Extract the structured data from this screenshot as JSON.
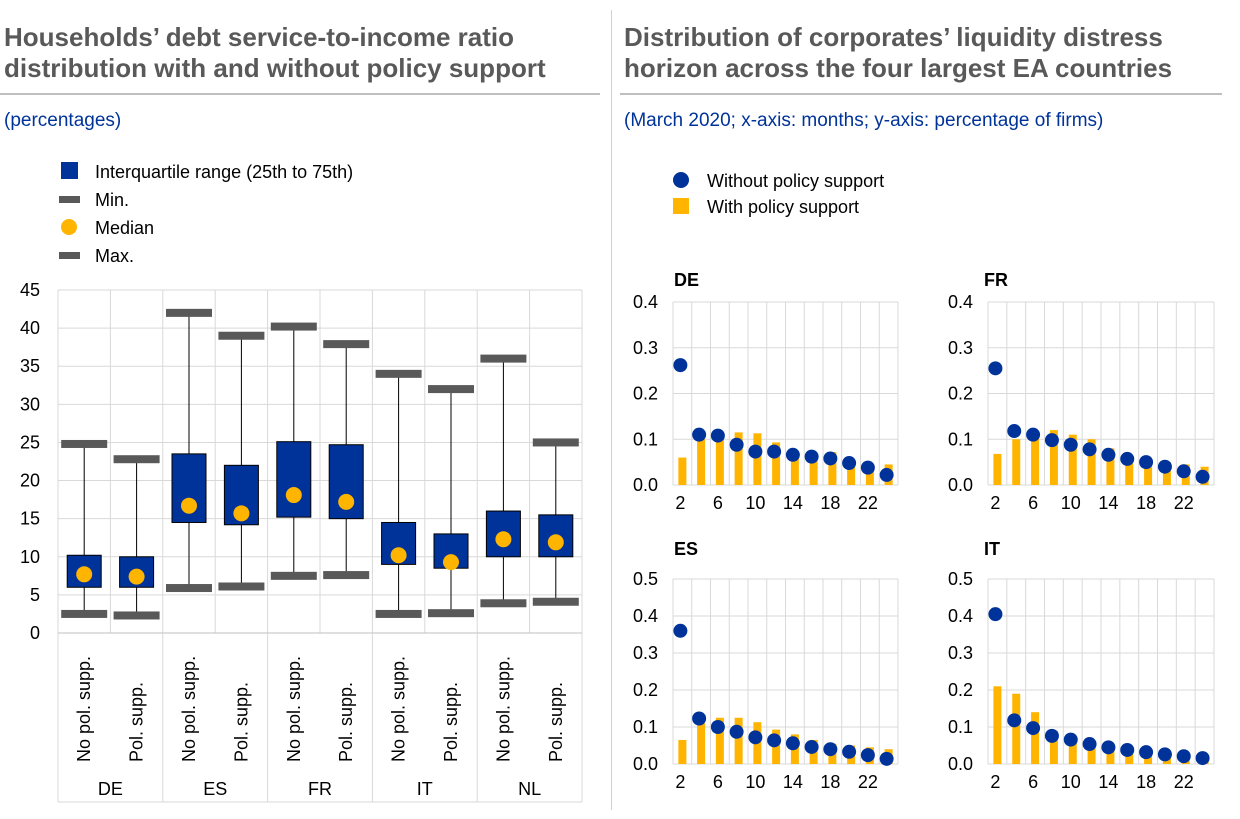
{
  "left_panel": {
    "title_line1": "Households’ debt service-to-income ratio",
    "title_line2": "distribution with and without policy support",
    "subtitle": "(percentages)"
  },
  "right_panel": {
    "title_line1": "Distribution of corporates’ liquidity distress",
    "title_line2": "horizon across the four largest EA countries",
    "subtitle": "(March 2020; x-axis: months; y-axis: percentage of firms)"
  },
  "colors": {
    "box": "#003399",
    "whisker_cap": "#595959",
    "median": "#ffb400",
    "dot": "#003399",
    "bar": "#ffb400",
    "grid": "#d9d9d9"
  },
  "chart_data": [
    {
      "type": "box",
      "legend": [
        {
          "label": "Interquartile range (25th to 75th)",
          "symbol": "square-blue"
        },
        {
          "label": "Min.",
          "symbol": "dash-grey"
        },
        {
          "label": "Median",
          "symbol": "circle-yellow"
        },
        {
          "label": "Max.",
          "symbol": "dash-grey"
        }
      ],
      "ylim": [
        0,
        45
      ],
      "yticks": [
        0,
        5,
        10,
        15,
        20,
        25,
        30,
        35,
        40,
        45
      ],
      "groups": [
        "DE",
        "ES",
        "FR",
        "IT",
        "NL"
      ],
      "boxes": [
        {
          "group": "DE",
          "label": "No pol. supp.",
          "min": 2.5,
          "q1": 6.0,
          "median": 7.7,
          "q3": 10.2,
          "max": 24.8
        },
        {
          "group": "DE",
          "label": "Pol. supp.",
          "min": 2.3,
          "q1": 6.0,
          "median": 7.4,
          "q3": 10.0,
          "max": 22.8
        },
        {
          "group": "ES",
          "label": "No pol. supp.",
          "min": 5.9,
          "q1": 14.5,
          "median": 16.7,
          "q3": 23.5,
          "max": 42.0
        },
        {
          "group": "ES",
          "label": "Pol. supp.",
          "min": 6.1,
          "q1": 14.2,
          "median": 15.7,
          "q3": 22.0,
          "max": 39.0
        },
        {
          "group": "FR",
          "label": "No pol. supp.",
          "min": 7.5,
          "q1": 15.2,
          "median": 18.1,
          "q3": 25.1,
          "max": 40.2
        },
        {
          "group": "FR",
          "label": "Pol. supp.",
          "min": 7.6,
          "q1": 15.0,
          "median": 17.2,
          "q3": 24.7,
          "max": 37.9
        },
        {
          "group": "IT",
          "label": "No pol. supp.",
          "min": 2.5,
          "q1": 9.0,
          "median": 10.2,
          "q3": 14.5,
          "max": 34.0
        },
        {
          "group": "IT",
          "label": "Pol. supp.",
          "min": 2.6,
          "q1": 8.5,
          "median": 9.3,
          "q3": 13.0,
          "max": 32.0
        },
        {
          "group": "NL",
          "label": "No pol. supp.",
          "min": 3.9,
          "q1": 10.0,
          "median": 12.3,
          "q3": 16.0,
          "max": 36.0
        },
        {
          "group": "NL",
          "label": "Pol. supp.",
          "min": 4.1,
          "q1": 10.0,
          "median": 11.9,
          "q3": 15.5,
          "max": 25.0
        }
      ]
    },
    {
      "type": "bar+scatter",
      "legend": [
        {
          "label": "Without policy support",
          "symbol": "circle-blue"
        },
        {
          "label": "With policy support",
          "symbol": "square-yellow"
        }
      ],
      "x": [
        2,
        4,
        6,
        8,
        10,
        12,
        14,
        16,
        18,
        20,
        22,
        24
      ],
      "xticks": [
        2,
        6,
        10,
        14,
        18,
        22
      ],
      "panels": [
        {
          "name": "DE",
          "ylim": [
            0,
            0.4
          ],
          "yticks": [
            "0.0",
            "0.1",
            "0.2",
            "0.3",
            "0.4"
          ],
          "with": [
            0.06,
            0.1,
            0.11,
            0.115,
            0.113,
            0.093,
            0.07,
            0.065,
            0.072,
            0.045,
            0.04,
            0.045
          ],
          "without": [
            0.262,
            0.11,
            0.108,
            0.088,
            0.073,
            0.073,
            0.066,
            0.062,
            0.058,
            0.048,
            0.038,
            0.022
          ]
        },
        {
          "name": "FR",
          "ylim": [
            0,
            0.4
          ],
          "yticks": [
            "0.0",
            "0.1",
            "0.2",
            "0.3",
            "0.4"
          ],
          "with": [
            0.068,
            0.1,
            0.11,
            0.12,
            0.11,
            0.1,
            0.08,
            0.06,
            0.05,
            0.05,
            0.045,
            0.04
          ],
          "without": [
            0.255,
            0.118,
            0.11,
            0.098,
            0.088,
            0.078,
            0.066,
            0.057,
            0.05,
            0.04,
            0.03,
            0.018
          ]
        },
        {
          "name": "ES",
          "ylim": [
            0,
            0.5
          ],
          "yticks": [
            "0.0",
            "0.1",
            "0.2",
            "0.3",
            "0.4",
            "0.5"
          ],
          "with": [
            0.065,
            0.11,
            0.125,
            0.125,
            0.113,
            0.093,
            0.08,
            0.065,
            0.055,
            0.05,
            0.045,
            0.04
          ],
          "without": [
            0.36,
            0.123,
            0.1,
            0.087,
            0.072,
            0.064,
            0.056,
            0.046,
            0.04,
            0.033,
            0.024,
            0.014
          ]
        },
        {
          "name": "IT",
          "ylim": [
            0,
            0.5
          ],
          "yticks": [
            "0.0",
            "0.1",
            "0.2",
            "0.3",
            "0.4",
            "0.5"
          ],
          "with": [
            0.21,
            0.19,
            0.14,
            0.09,
            0.06,
            0.05,
            0.04,
            0.035,
            0.025,
            0.02,
            0.015,
            0.01
          ],
          "without": [
            0.405,
            0.118,
            0.097,
            0.076,
            0.066,
            0.054,
            0.045,
            0.038,
            0.032,
            0.026,
            0.021,
            0.016
          ]
        }
      ]
    }
  ]
}
